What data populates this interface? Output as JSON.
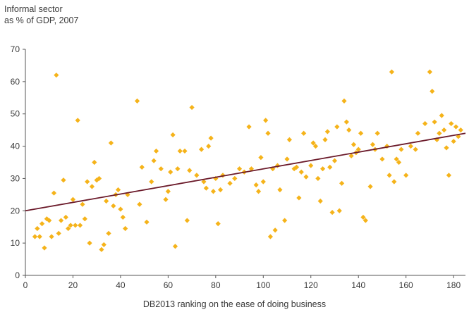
{
  "chart_data": {
    "type": "scatter",
    "ylabel_lines": [
      "Informal sector",
      "as % of GDP, 2007"
    ],
    "xlabel": "DB2013 ranking on the ease of doing business",
    "xlim": [
      0,
      185
    ],
    "ylim": [
      0,
      70
    ],
    "x_ticks": [
      0,
      20,
      40,
      60,
      80,
      100,
      120,
      140,
      160,
      180
    ],
    "y_ticks": [
      0,
      10,
      20,
      30,
      40,
      50,
      60,
      70
    ],
    "grid": false,
    "colors": {
      "points": "#f5b31a",
      "trend": "#6b1a2a",
      "axis": "#555555"
    },
    "trend_line": {
      "x": [
        0,
        185
      ],
      "y": [
        20,
        44
      ]
    },
    "points": [
      [
        4,
        12
      ],
      [
        5,
        14.5
      ],
      [
        6,
        12
      ],
      [
        7,
        16
      ],
      [
        8,
        8.5
      ],
      [
        9,
        17.5
      ],
      [
        10,
        17
      ],
      [
        11,
        12
      ],
      [
        12,
        25.5
      ],
      [
        13,
        62
      ],
      [
        14,
        13
      ],
      [
        15,
        17
      ],
      [
        16,
        29.5
      ],
      [
        17,
        18
      ],
      [
        18,
        14.5
      ],
      [
        19,
        15.5
      ],
      [
        20,
        23.5
      ],
      [
        21,
        15.5
      ],
      [
        22,
        48
      ],
      [
        23,
        15.5
      ],
      [
        24,
        22
      ],
      [
        25,
        17.5
      ],
      [
        26,
        29
      ],
      [
        27,
        10
      ],
      [
        28,
        27.5
      ],
      [
        29,
        35
      ],
      [
        30,
        29.5
      ],
      [
        31,
        30
      ],
      [
        32,
        8
      ],
      [
        33,
        9.5
      ],
      [
        34,
        23
      ],
      [
        35,
        13
      ],
      [
        36,
        41
      ],
      [
        37,
        21.5
      ],
      [
        38,
        25
      ],
      [
        39,
        26.5
      ],
      [
        40,
        20.5
      ],
      [
        41,
        18
      ],
      [
        42,
        14.5
      ],
      [
        43,
        25
      ],
      [
        47,
        54
      ],
      [
        48,
        22
      ],
      [
        49,
        33.5
      ],
      [
        51,
        16.5
      ],
      [
        53,
        29
      ],
      [
        54,
        35.5
      ],
      [
        55,
        38.5
      ],
      [
        57,
        33
      ],
      [
        59,
        23.5
      ],
      [
        60,
        26
      ],
      [
        61,
        32
      ],
      [
        62,
        43.5
      ],
      [
        63,
        9
      ],
      [
        64,
        33
      ],
      [
        65,
        38.5
      ],
      [
        67,
        38.5
      ],
      [
        68,
        17
      ],
      [
        69,
        32.5
      ],
      [
        70,
        52
      ],
      [
        72,
        31
      ],
      [
        74,
        39
      ],
      [
        75,
        29
      ],
      [
        76,
        27
      ],
      [
        77,
        40
      ],
      [
        78,
        42.5
      ],
      [
        79,
        26
      ],
      [
        80,
        30
      ],
      [
        81,
        16
      ],
      [
        82,
        26.5
      ],
      [
        83,
        31
      ],
      [
        86,
        28.5
      ],
      [
        88,
        30
      ],
      [
        90,
        33
      ],
      [
        92,
        32
      ],
      [
        94,
        46
      ],
      [
        95,
        33
      ],
      [
        97,
        28
      ],
      [
        98,
        26
      ],
      [
        99,
        36.5
      ],
      [
        100,
        29
      ],
      [
        101,
        48
      ],
      [
        102,
        44
      ],
      [
        103,
        12
      ],
      [
        104,
        33
      ],
      [
        105,
        14
      ],
      [
        106,
        34
      ],
      [
        107,
        26.5
      ],
      [
        109,
        17
      ],
      [
        110,
        36
      ],
      [
        111,
        42
      ],
      [
        113,
        33
      ],
      [
        114,
        33.5
      ],
      [
        115,
        24
      ],
      [
        116,
        32
      ],
      [
        117,
        44
      ],
      [
        118,
        30.5
      ],
      [
        120,
        34
      ],
      [
        121,
        41
      ],
      [
        122,
        40
      ],
      [
        123,
        30
      ],
      [
        124,
        23
      ],
      [
        125,
        33
      ],
      [
        126,
        42
      ],
      [
        127,
        44.5
      ],
      [
        128,
        33.5
      ],
      [
        129,
        19.5
      ],
      [
        130,
        35.5
      ],
      [
        131,
        46
      ],
      [
        132,
        20
      ],
      [
        133,
        28.5
      ],
      [
        134,
        54
      ],
      [
        135,
        47.5
      ],
      [
        136,
        45
      ],
      [
        137,
        37
      ],
      [
        138,
        40.5
      ],
      [
        139,
        38
      ],
      [
        140,
        39
      ],
      [
        141,
        44
      ],
      [
        142,
        18
      ],
      [
        143,
        17
      ],
      [
        145,
        27.5
      ],
      [
        146,
        40.5
      ],
      [
        147,
        39
      ],
      [
        148,
        44
      ],
      [
        150,
        36
      ],
      [
        152,
        40
      ],
      [
        153,
        31
      ],
      [
        154,
        63
      ],
      [
        155,
        29
      ],
      [
        156,
        36
      ],
      [
        157,
        35
      ],
      [
        158,
        39
      ],
      [
        160,
        31
      ],
      [
        162,
        40
      ],
      [
        164,
        39
      ],
      [
        165,
        44
      ],
      [
        168,
        47
      ],
      [
        170,
        63
      ],
      [
        171,
        57
      ],
      [
        172,
        47.5
      ],
      [
        173,
        42
      ],
      [
        174,
        44
      ],
      [
        175,
        49.5
      ],
      [
        176,
        45
      ],
      [
        177,
        39.5
      ],
      [
        178,
        31
      ],
      [
        179,
        47
      ],
      [
        180,
        41.5
      ],
      [
        181,
        46
      ],
      [
        182,
        43
      ],
      [
        183,
        45
      ]
    ]
  }
}
